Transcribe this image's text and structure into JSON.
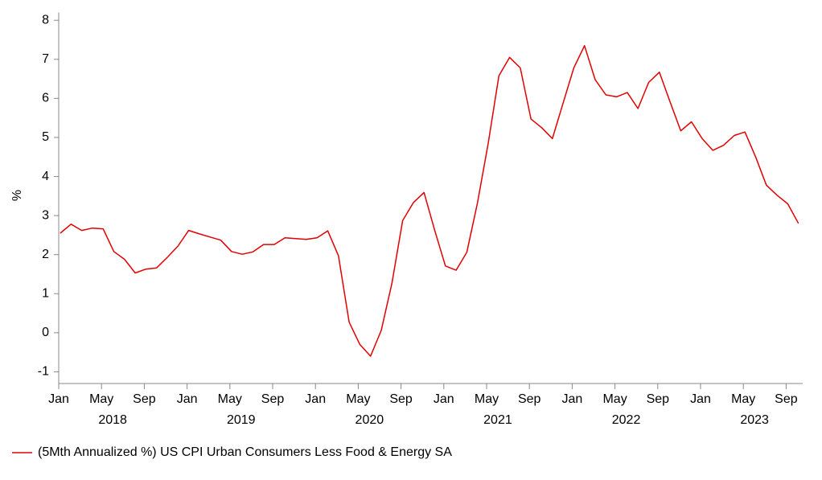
{
  "chart_data": {
    "type": "line",
    "y_label": "%",
    "x": [
      "2018-01",
      "2018-02",
      "2018-03",
      "2018-04",
      "2018-05",
      "2018-06",
      "2018-07",
      "2018-08",
      "2018-09",
      "2018-10",
      "2018-11",
      "2018-12",
      "2019-01",
      "2019-02",
      "2019-03",
      "2019-04",
      "2019-05",
      "2019-06",
      "2019-07",
      "2019-08",
      "2019-09",
      "2019-10",
      "2019-11",
      "2019-12",
      "2020-01",
      "2020-02",
      "2020-03",
      "2020-04",
      "2020-05",
      "2020-06",
      "2020-07",
      "2020-08",
      "2020-09",
      "2020-10",
      "2020-11",
      "2020-12",
      "2021-01",
      "2021-02",
      "2021-03",
      "2021-04",
      "2021-05",
      "2021-06",
      "2021-07",
      "2021-08",
      "2021-09",
      "2021-10",
      "2021-11",
      "2021-12",
      "2022-01",
      "2022-02",
      "2022-03",
      "2022-04",
      "2022-05",
      "2022-06",
      "2022-07",
      "2022-08",
      "2022-09",
      "2022-10",
      "2022-11",
      "2022-12",
      "2023-01",
      "2023-02",
      "2023-03",
      "2023-04",
      "2023-05",
      "2023-06",
      "2023-07",
      "2023-08",
      "2023-09",
      "2023-10"
    ],
    "series": [
      {
        "name": "(5Mth Annualized %) US CPI Urban Consumers Less Food & Energy SA",
        "color": "#e00000",
        "values": [
          2.55,
          2.78,
          2.62,
          2.68,
          2.66,
          2.08,
          1.88,
          1.53,
          1.63,
          1.66,
          1.93,
          2.22,
          2.62,
          2.53,
          2.45,
          2.37,
          2.08,
          2.01,
          2.07,
          2.26,
          2.26,
          2.43,
          2.41,
          2.39,
          2.43,
          2.61,
          1.97,
          0.27,
          -0.3,
          -0.6,
          0.06,
          1.27,
          2.87,
          3.33,
          3.59,
          2.62,
          1.71,
          1.6,
          2.06,
          3.33,
          4.85,
          6.58,
          7.05,
          6.78,
          5.47,
          5.25,
          4.97,
          5.88,
          6.78,
          7.35,
          6.48,
          6.09,
          6.04,
          6.15,
          5.74,
          6.41,
          6.67,
          5.91,
          5.17,
          5.4,
          4.97,
          4.67,
          4.8,
          5.05,
          5.14,
          4.5,
          3.78,
          3.52,
          3.3,
          2.8
        ]
      }
    ],
    "xticks": [
      {
        "value": "2018-01",
        "label": "Jan"
      },
      {
        "value": "2018-05",
        "label": "May"
      },
      {
        "value": "2018-09",
        "label": "Sep"
      },
      {
        "value": "2019-01",
        "label": "Jan"
      },
      {
        "value": "2019-05",
        "label": "May"
      },
      {
        "value": "2019-09",
        "label": "Sep"
      },
      {
        "value": "2020-01",
        "label": "Jan"
      },
      {
        "value": "2020-05",
        "label": "May"
      },
      {
        "value": "2020-09",
        "label": "Sep"
      },
      {
        "value": "2021-01",
        "label": "Jan"
      },
      {
        "value": "2021-05",
        "label": "May"
      },
      {
        "value": "2021-09",
        "label": "Sep"
      },
      {
        "value": "2022-01",
        "label": "Jan"
      },
      {
        "value": "2022-05",
        "label": "May"
      },
      {
        "value": "2022-09",
        "label": "Sep"
      },
      {
        "value": "2023-01",
        "label": "Jan"
      },
      {
        "value": "2023-05",
        "label": "May"
      },
      {
        "value": "2023-09",
        "label": "Sep"
      }
    ],
    "years": [
      "2018",
      "2019",
      "2020",
      "2021",
      "2022",
      "2023"
    ],
    "ylim": [
      -1.3,
      8.2
    ],
    "yticks": [
      -1,
      0,
      1,
      2,
      3,
      4,
      5,
      6,
      7,
      8
    ],
    "grid": false,
    "legend": "bottom-left"
  }
}
